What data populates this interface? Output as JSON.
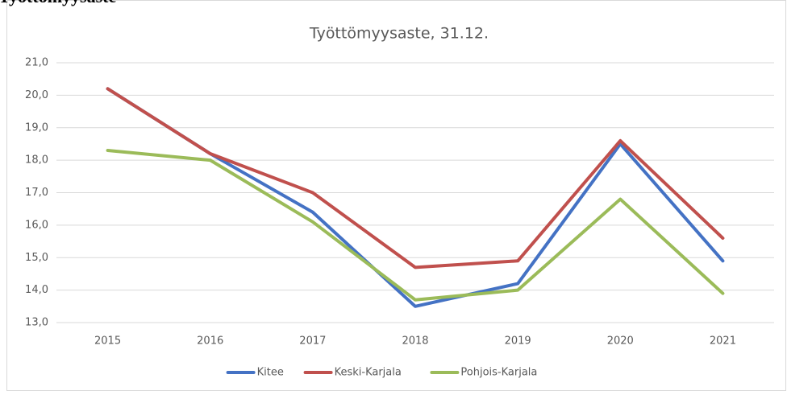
{
  "heading": "Työttömyysaste",
  "chart_data": {
    "type": "line",
    "title": "Työttömyysaste, 31.12.",
    "categories": [
      "2015",
      "2016",
      "2017",
      "2018",
      "2019",
      "2020",
      "2021"
    ],
    "series": [
      {
        "name": "Kitee",
        "color": "#4472c4",
        "values": [
          20.2,
          18.2,
          16.4,
          13.5,
          14.2,
          18.5,
          14.9
        ]
      },
      {
        "name": "Keski-Karjala",
        "color": "#c0504d",
        "values": [
          20.2,
          18.2,
          17.0,
          14.7,
          14.9,
          18.6,
          15.6
        ]
      },
      {
        "name": "Pohjois-Karjala",
        "color": "#9bbb59",
        "values": [
          18.3,
          18.0,
          16.1,
          13.7,
          14.0,
          16.8,
          13.9
        ]
      }
    ],
    "ylim": [
      13,
      21
    ],
    "yticks": [
      {
        "value": 13,
        "label": "13,0"
      },
      {
        "value": 14,
        "label": "14,0"
      },
      {
        "value": 15,
        "label": "15,0"
      },
      {
        "value": 16,
        "label": "16,0"
      },
      {
        "value": 17,
        "label": "17,0"
      },
      {
        "value": 18,
        "label": "18,0"
      },
      {
        "value": 19,
        "label": "19,0"
      },
      {
        "value": 20,
        "label": "20,0"
      },
      {
        "value": 21,
        "label": "21,0"
      }
    ],
    "grid": true,
    "legend": "bottom"
  }
}
